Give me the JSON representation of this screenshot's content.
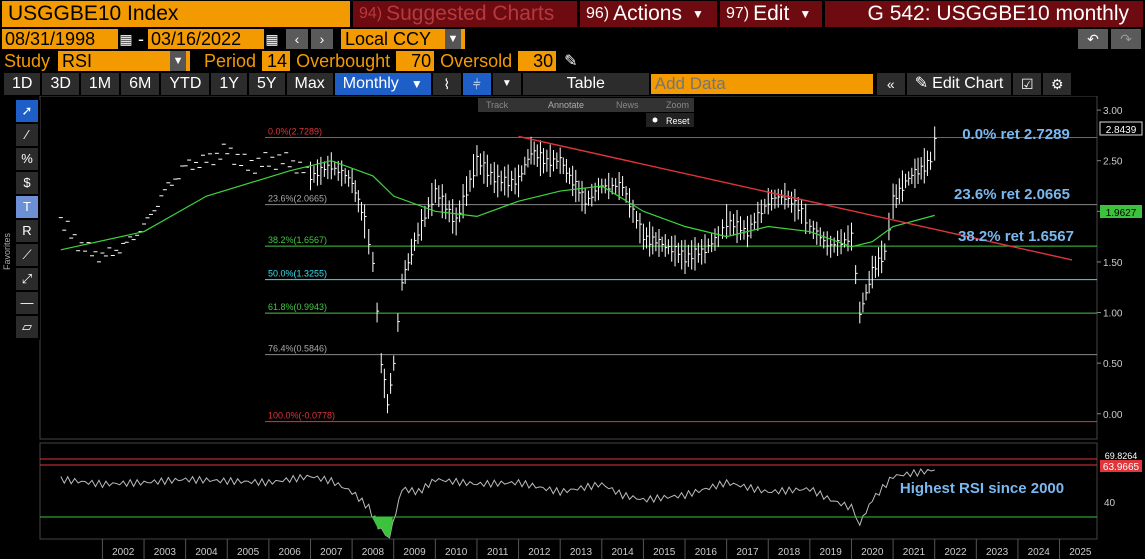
{
  "header": {
    "ticker": "USGGBE10 Index",
    "suggested": {
      "num": "94)",
      "label": "Suggested Charts"
    },
    "actions": {
      "num": "96)",
      "label": "Actions"
    },
    "edit": {
      "num": "97)",
      "label": "Edit"
    },
    "title": "G 542: USGGBE10 monthly"
  },
  "dates": {
    "start": "08/31/1998",
    "sep": "-",
    "end": "03/16/2022",
    "ccy": "Local CCY"
  },
  "study": {
    "label": "Study",
    "value": "RSI",
    "period_label": "Period",
    "period": "14",
    "ob_label": "Overbought",
    "ob": "70",
    "os_label": "Oversold",
    "os": "30"
  },
  "ranges": [
    "1D",
    "3D",
    "1M",
    "6M",
    "YTD",
    "1Y",
    "5Y",
    "Max"
  ],
  "freq": "Monthly",
  "table_label": "Table",
  "add_data_placeholder": "Add Data",
  "edit_chart": "Edit Chart",
  "overlay_tools": {
    "track": "Track",
    "annotate": "Annotate",
    "news": "News",
    "zoom": "Zoom",
    "reset": "Reset"
  },
  "favorites": "Favorites",
  "colors": {
    "orange": "#f39a00",
    "red": "#e0353b",
    "green": "#44c744",
    "cyan": "#38e0f0",
    "fibtext": "#7ab8f0"
  },
  "chart_data": [
    {
      "type": "candlestick",
      "ylim": [
        -0.2,
        3.1
      ],
      "yticks": [
        "3.00",
        "2.50",
        "2.00",
        "1.50",
        "1.00",
        "0.50",
        "0.00"
      ],
      "xticks": [
        "2002",
        "2003",
        "2004",
        "2005",
        "2006",
        "2007",
        "2008",
        "2009",
        "2010",
        "2011",
        "2012",
        "2013",
        "2014",
        "2015",
        "2016",
        "2017",
        "2018",
        "2019",
        "2020",
        "2021",
        "2022",
        "2023",
        "2024",
        "2025"
      ],
      "last_price": "2.8439",
      "ma_value": "1.9627",
      "fib_levels": [
        {
          "label": "0.0%(2.7289)",
          "value": 2.7289,
          "color": "#e0353b"
        },
        {
          "label": "23.6%(2.0665)",
          "value": 2.0665,
          "color": "#888888"
        },
        {
          "label": "38.2%(1.6567)",
          "value": 1.6567,
          "color": "#44c744"
        },
        {
          "label": "50.0%(1.3255)",
          "value": 1.3255,
          "color": "#38e0f0"
        },
        {
          "label": "61.8%(0.9943)",
          "value": 0.9943,
          "color": "#44c744"
        },
        {
          "label": "76.4%(0.5846)",
          "value": 0.5846,
          "color": "#888888"
        },
        {
          "label": "100.0%(-0.0778)",
          "value": -0.0778,
          "color": "#e0353b"
        }
      ],
      "annotations": [
        "0.0% ret 2.7289",
        "23.6% ret 2.0665",
        "38.2% ret 1.6567"
      ],
      "series": [
        {
          "name": "price",
          "t": [
            2001.0,
            2001.5,
            2002.0,
            2002.5,
            2003.0,
            2003.5,
            2004.0,
            2004.5,
            2005.0,
            2005.5,
            2006.0,
            2006.5,
            2007.0,
            2007.5,
            2008.0,
            2008.3,
            2008.5,
            2008.7,
            2008.85,
            2009.0,
            2009.2,
            2009.5,
            2010.0,
            2010.5,
            2011.0,
            2011.5,
            2012.0,
            2012.3,
            2012.6,
            2013.0,
            2013.3,
            2013.6,
            2014.0,
            2014.5,
            2015.0,
            2015.3,
            2015.6,
            2016.0,
            2016.4,
            2016.8,
            2017.0,
            2017.5,
            2018.0,
            2018.4,
            2018.8,
            2019.0,
            2019.5,
            2020.0,
            2020.2,
            2020.5,
            2020.8,
            2021.0,
            2021.3,
            2021.6,
            2021.9,
            2022.1
          ],
          "values": [
            1.9,
            1.65,
            1.55,
            1.65,
            1.85,
            2.2,
            2.45,
            2.5,
            2.6,
            2.45,
            2.5,
            2.5,
            2.35,
            2.45,
            2.3,
            1.9,
            1.5,
            0.5,
            0.1,
            0.5,
            1.3,
            1.7,
            2.2,
            1.9,
            2.5,
            2.3,
            2.3,
            2.6,
            2.5,
            2.5,
            2.3,
            2.1,
            2.25,
            2.25,
            1.75,
            1.7,
            1.65,
            1.55,
            1.6,
            1.75,
            1.9,
            1.8,
            2.1,
            2.15,
            2.0,
            1.85,
            1.65,
            1.75,
            1.0,
            1.4,
            1.6,
            2.1,
            2.3,
            2.4,
            2.5,
            2.84
          ]
        },
        {
          "name": "moving average",
          "t": [
            2001.0,
            2003.0,
            2004.5,
            2006.5,
            2007.5,
            2008.5,
            2009.0,
            2010.0,
            2011.0,
            2012.0,
            2013.0,
            2014.0,
            2015.0,
            2016.0,
            2017.0,
            2018.0,
            2019.0,
            2020.0,
            2020.5,
            2021.0,
            2022.0
          ],
          "values": [
            1.62,
            1.8,
            2.15,
            2.4,
            2.5,
            2.35,
            2.15,
            2.0,
            1.95,
            2.1,
            2.2,
            2.25,
            2.0,
            1.85,
            1.75,
            1.85,
            1.8,
            1.65,
            1.7,
            1.85,
            1.96
          ]
        }
      ],
      "trendline": {
        "t": [
          2012.0,
          2025.3
        ],
        "values": [
          2.74,
          1.52
        ]
      }
    },
    {
      "type": "line",
      "title": "RSI",
      "ylim": [
        22,
        78
      ],
      "yticks": [
        "40"
      ],
      "overbought": "69.8264",
      "last": "63.9665",
      "annotation": "Highest RSI since 2000",
      "series": [
        {
          "name": "RSI",
          "t": [
            2001.0,
            2002.0,
            2003.0,
            2004.0,
            2005.0,
            2006.0,
            2007.0,
            2007.5,
            2008.0,
            2008.4,
            2008.7,
            2008.9,
            2009.2,
            2009.6,
            2010.0,
            2011.0,
            2012.0,
            2013.0,
            2014.0,
            2014.5,
            2015.0,
            2016.0,
            2017.0,
            2018.0,
            2019.0,
            2019.5,
            2020.0,
            2020.2,
            2020.5,
            2021.0,
            2021.5,
            2022.0
          ],
          "values": [
            58,
            55,
            56,
            58,
            57,
            56,
            60,
            57,
            50,
            40,
            25,
            22,
            52,
            50,
            58,
            55,
            56,
            50,
            55,
            48,
            45,
            48,
            56,
            50,
            52,
            45,
            40,
            30,
            45,
            60,
            62,
            64
          ]
        }
      ]
    }
  ]
}
